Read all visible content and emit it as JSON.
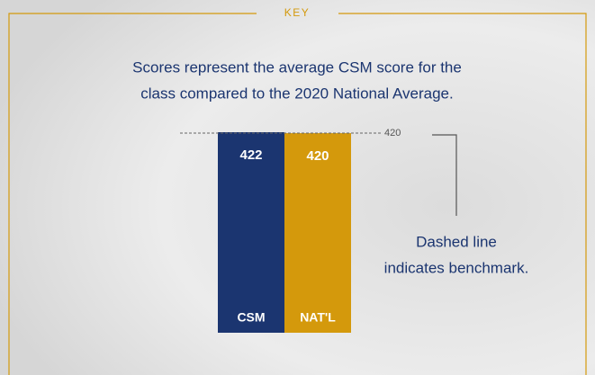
{
  "chart_data": {
    "type": "bar",
    "heading": "KEY",
    "description": [
      "Scores represent the average CSM score for the",
      "class compared to the 2020 National Average."
    ],
    "categories": [
      "CSM",
      "NAT'L"
    ],
    "values": [
      422,
      420
    ],
    "colors": [
      "#1b3570",
      "#d4990c"
    ],
    "ylim": [
      0,
      422
    ],
    "benchmark": 420,
    "annotation": [
      "Dashed line",
      "indicates benchmark."
    ]
  }
}
